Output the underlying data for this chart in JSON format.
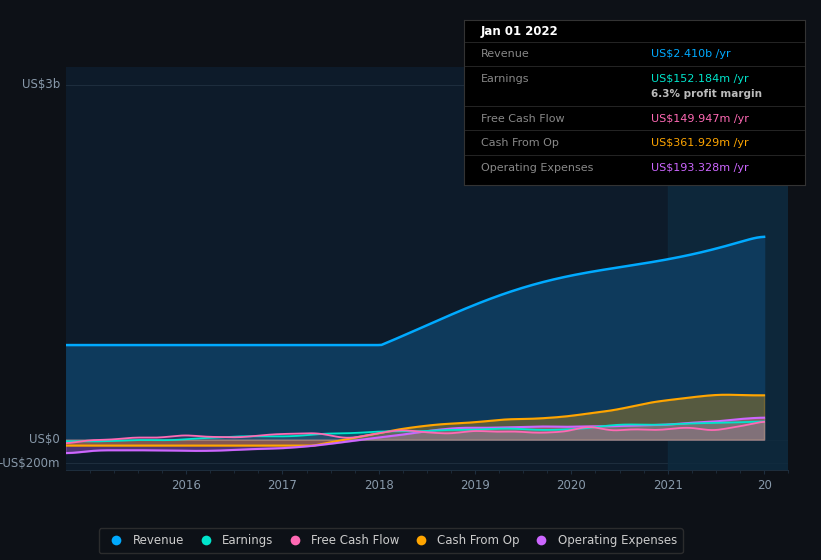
{
  "background_color": "#0d1117",
  "plot_bg_color": "#0d1b2a",
  "tooltip": {
    "date": "Jan 01 2022",
    "Revenue": {
      "label": "Revenue",
      "value": "US$2.410b /yr",
      "color": "#00aaff"
    },
    "Earnings": {
      "label": "Earnings",
      "value": "US$152.184m /yr",
      "color": "#00e5cc"
    },
    "profit_margin": "6.3% profit margin",
    "Free Cash Flow": {
      "label": "Free Cash Flow",
      "value": "US$149.947m /yr",
      "color": "#ff69b4"
    },
    "Cash From Op": {
      "label": "Cash From Op",
      "value": "US$361.929m /yr",
      "color": "#ffa500"
    },
    "Operating Expenses": {
      "label": "Operating Expenses",
      "value": "US$193.328m /yr",
      "color": "#cc66ff"
    }
  },
  "legend": [
    {
      "label": "Revenue",
      "color": "#00aaff"
    },
    {
      "label": "Earnings",
      "color": "#00e5cc"
    },
    {
      "label": "Free Cash Flow",
      "color": "#ff69b4"
    },
    {
      "label": "Cash From Op",
      "color": "#ffa500"
    },
    {
      "label": "Operating Expenses",
      "color": "#cc66ff"
    }
  ],
  "revenue_color": "#00aaff",
  "revenue_fill": "#0e3a5c",
  "earnings_color": "#00e5cc",
  "fcf_color": "#ff69b4",
  "cashop_color": "#ffa500",
  "opex_color": "#cc66ff",
  "highlight_color": "#0e2a3d",
  "grid_color": "#1e2e3e",
  "tick_color": "#8899aa"
}
